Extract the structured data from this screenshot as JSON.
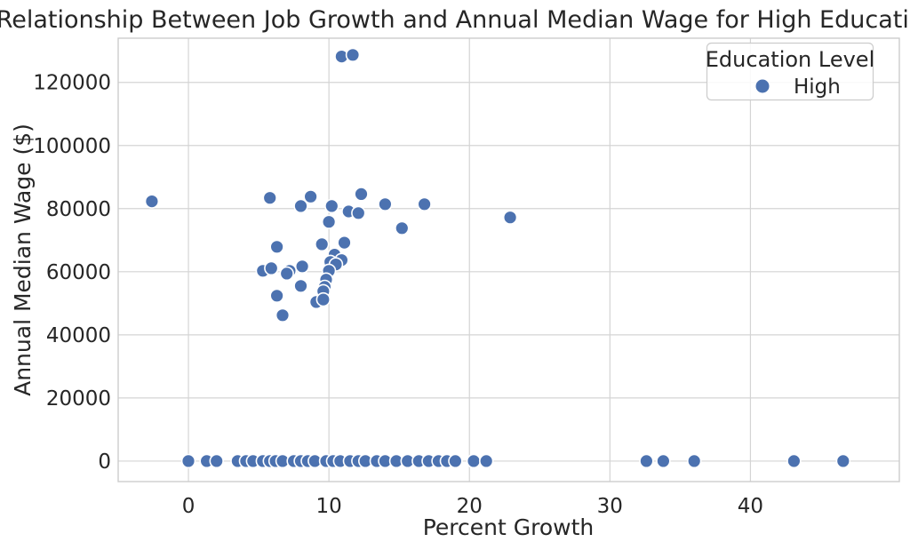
{
  "page_title": "Relationship Between Job Growth and Annual Median Wage for High Education Level",
  "colors": {
    "marker": "#4C72B0",
    "marker_edge": "#ffffff",
    "grid": "#d4d4d4",
    "spine": "#cccccc",
    "text": "#262626",
    "background": "#ffffff",
    "legend_border": "#cccccc",
    "legend_fill": "#ffffff"
  },
  "chart_data": {
    "type": "scatter",
    "title": "Relationship Between Job Growth and Annual Median Wage for High Education Level",
    "xlabel": "Percent Growth",
    "ylabel": "Annual Median Wage ($)",
    "xlim": [
      -5,
      50.6
    ],
    "ylim": [
      -6500,
      134000
    ],
    "grid": true,
    "x_ticks": [
      0,
      10,
      20,
      30,
      40
    ],
    "x_tick_labels": [
      "0",
      "10",
      "20",
      "30",
      "40"
    ],
    "y_ticks": [
      0,
      20000,
      40000,
      60000,
      80000,
      100000,
      120000
    ],
    "y_tick_labels": [
      "0",
      "20000",
      "40000",
      "60000",
      "80000",
      "100000",
      "120000"
    ],
    "legend": {
      "title": "Education Level",
      "position": "upper-right",
      "entries": [
        {
          "label": "High",
          "color": "#4C72B0"
        }
      ]
    },
    "series": [
      {
        "name": "High",
        "color": "#4C72B0",
        "points": [
          [
            -2.6,
            82300
          ],
          [
            5.8,
            83400
          ],
          [
            8.0,
            80800
          ],
          [
            8.7,
            83800
          ],
          [
            10.2,
            80800
          ],
          [
            12.3,
            84600
          ],
          [
            14.0,
            81400
          ],
          [
            16.8,
            81400
          ],
          [
            22.9,
            77200
          ],
          [
            10.0,
            75800
          ],
          [
            11.4,
            79100
          ],
          [
            12.1,
            78600
          ],
          [
            15.2,
            73800
          ],
          [
            10.9,
            128200
          ],
          [
            11.7,
            128700
          ],
          [
            6.3,
            67900
          ],
          [
            9.5,
            68700
          ],
          [
            11.1,
            69200
          ],
          [
            10.4,
            65400
          ],
          [
            10.9,
            63700
          ],
          [
            10.1,
            63100
          ],
          [
            10.5,
            62300
          ],
          [
            5.3,
            60300
          ],
          [
            5.9,
            61100
          ],
          [
            7.2,
            60300
          ],
          [
            7.0,
            59400
          ],
          [
            8.1,
            61700
          ],
          [
            10.0,
            60300
          ],
          [
            9.8,
            57500
          ],
          [
            9.7,
            55200
          ],
          [
            9.6,
            53800
          ],
          [
            8.0,
            55500
          ],
          [
            6.3,
            52400
          ],
          [
            9.1,
            50400
          ],
          [
            9.6,
            51200
          ],
          [
            6.7,
            46200
          ],
          [
            0.0,
            0
          ],
          [
            1.3,
            0
          ],
          [
            2.0,
            0
          ],
          [
            3.5,
            0
          ],
          [
            4.1,
            0
          ],
          [
            4.6,
            0
          ],
          [
            5.3,
            0
          ],
          [
            5.8,
            0
          ],
          [
            6.2,
            0
          ],
          [
            6.7,
            0
          ],
          [
            7.5,
            0
          ],
          [
            8.0,
            0
          ],
          [
            8.5,
            0
          ],
          [
            9.0,
            0
          ],
          [
            9.8,
            0
          ],
          [
            10.3,
            0
          ],
          [
            10.8,
            0
          ],
          [
            11.5,
            0
          ],
          [
            12.1,
            0
          ],
          [
            12.6,
            0
          ],
          [
            13.4,
            0
          ],
          [
            14.0,
            0
          ],
          [
            14.8,
            0
          ],
          [
            15.6,
            0
          ],
          [
            16.4,
            0
          ],
          [
            17.1,
            0
          ],
          [
            17.8,
            0
          ],
          [
            18.4,
            0
          ],
          [
            19.0,
            0
          ],
          [
            20.3,
            0
          ],
          [
            21.2,
            0
          ],
          [
            32.6,
            0
          ],
          [
            33.8,
            0
          ],
          [
            36.0,
            0
          ],
          [
            43.1,
            0
          ],
          [
            46.6,
            0
          ]
        ]
      }
    ]
  }
}
